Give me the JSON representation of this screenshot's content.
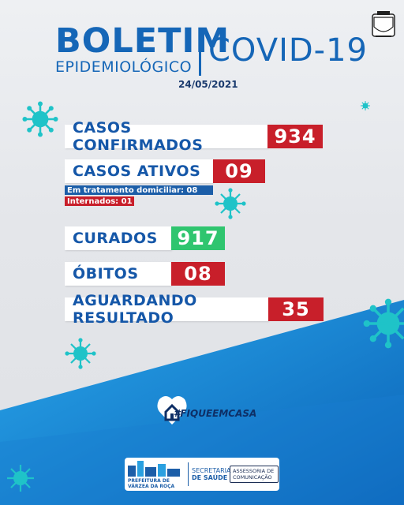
{
  "header": {
    "title": "BOLETIM",
    "subtitle": "EPIDEMIOLÓGICO",
    "topic": "COVID-19",
    "date": "24/05/2021"
  },
  "stats": {
    "confirmados": {
      "label": "CASOS CONFIRMADOS",
      "value": "934"
    },
    "ativos": {
      "label": "CASOS ATIVOS",
      "value": "09"
    },
    "domiciliar": "Em tratamento domiciliar: 08",
    "internados": "Internados: 01",
    "curados": {
      "label": "CURADOS",
      "value": "917"
    },
    "obitos": {
      "label": "ÓBITOS",
      "value": "08"
    },
    "aguardando": {
      "label": "AGUARDANDO RESULTADO",
      "value": "35"
    }
  },
  "campaign": {
    "hashtag": "#FIQUEEMCASA"
  },
  "footer": {
    "prefeitura_line1": "PREFEITURA DE",
    "prefeitura_line2": "VÁRZEA DA ROÇA",
    "secretaria_line1": "SECRETARIA",
    "secretaria_line2": "DE SAÚDE",
    "assessoria_line1": "ASSESSORIA DE",
    "assessoria_line2": "COMUNICAÇÃO"
  },
  "colors": {
    "brand_blue": "#1566b7",
    "alert_red": "#c81f2a",
    "success_green": "#2fc56f",
    "virus_cyan": "#1fc3c8"
  },
  "icons": [
    "virus-icon",
    "heart-house-icon",
    "crest-icon"
  ]
}
